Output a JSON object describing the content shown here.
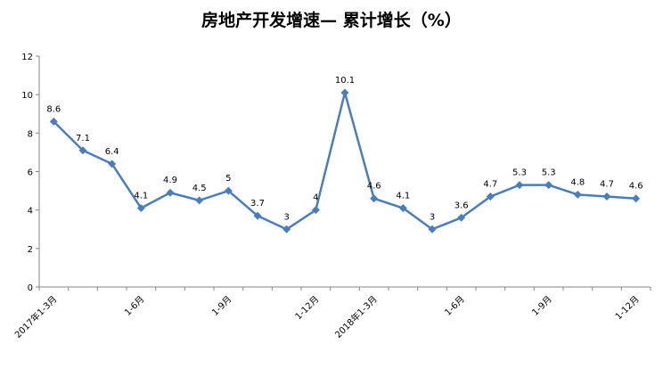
{
  "chart_data": {
    "type": "line",
    "title": "房地产开发增速— 累计增长（%）",
    "ylim": [
      0,
      12
    ],
    "y_ticks": [
      "0",
      "2",
      "4",
      "6",
      "8",
      "10",
      "12"
    ],
    "x_tick_labels": [
      "2017年1-3月",
      "1-6月",
      "1-9月",
      "1-12月",
      "2018年1-3月",
      "1-6月",
      "1-9月",
      "1-12月"
    ],
    "x_tick_positions": [
      0,
      3,
      6,
      9,
      11,
      14,
      17,
      20
    ],
    "series": [
      {
        "color": "#4a7ebb",
        "values": [
          8.6,
          7.1,
          6.4,
          4.1,
          4.9,
          4.5,
          5,
          3.7,
          3,
          4,
          10.1,
          4.6,
          4.1,
          3,
          3.6,
          4.7,
          5.3,
          5.3,
          4.8,
          4.7,
          4.6
        ],
        "labels": [
          "8.6",
          "7.1",
          "6.4",
          "4.1",
          "4.9",
          "4.5",
          "5",
          "3.7",
          "3",
          "4",
          "10.1",
          "4.6",
          "4.1",
          "3",
          "3.6",
          "4.7",
          "5.3",
          "5.3",
          "4.8",
          "4.7",
          "4.6"
        ]
      }
    ],
    "grid": false,
    "legend": "none"
  }
}
